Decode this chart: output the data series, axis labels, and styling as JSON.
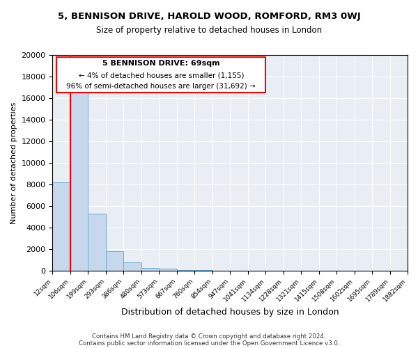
{
  "title": "5, BENNISON DRIVE, HAROLD WOOD, ROMFORD, RM3 0WJ",
  "subtitle": "Size of property relative to detached houses in London",
  "xlabel": "Distribution of detached houses by size in London",
  "ylabel": "Number of detached properties",
  "bar_values": [
    8200,
    16600,
    5300,
    1800,
    800,
    300,
    200,
    100,
    100,
    0,
    0,
    0,
    0,
    0,
    0,
    0,
    0,
    0,
    0,
    0
  ],
  "bar_labels": [
    "12sqm",
    "106sqm",
    "199sqm",
    "293sqm",
    "386sqm",
    "480sqm",
    "573sqm",
    "667sqm",
    "760sqm",
    "854sqm",
    "947sqm",
    "1041sqm",
    "1134sqm",
    "1228sqm",
    "1321sqm",
    "1415sqm",
    "1508sqm",
    "1602sqm",
    "1695sqm",
    "1789sqm",
    "1882sqm"
  ],
  "ylim": [
    0,
    20000
  ],
  "yticks": [
    0,
    2000,
    4000,
    6000,
    8000,
    10000,
    12000,
    14000,
    16000,
    18000,
    20000
  ],
  "bar_color": "#c8d8ec",
  "bar_edge_color": "#6aaad4",
  "bg_color": "#e8eef4",
  "red_line_x": 1,
  "annotation_title": "5 BENNISON DRIVE: 69sqm",
  "annotation_line1": "← 4% of detached houses are smaller (1,155)",
  "annotation_line2": "96% of semi-detached houses are larger (31,692) →",
  "footer1": "Contains HM Land Registry data © Crown copyright and database right 2024.",
  "footer2": "Contains public sector information licensed under the Open Government Licence v3.0."
}
